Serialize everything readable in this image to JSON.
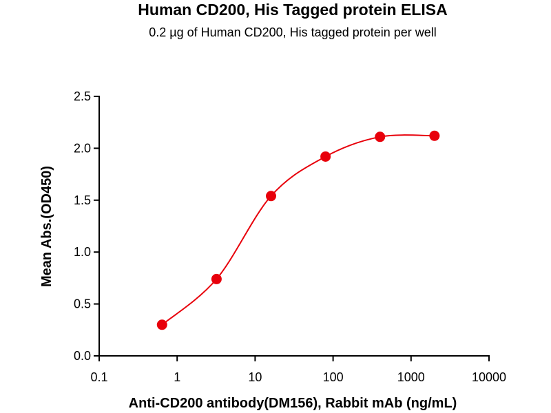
{
  "chart_data": {
    "type": "scatter",
    "title": "Human CD200, His Tagged protein  ELISA",
    "subtitle": "0.2 µg of Human CD200, His tagged protein per well",
    "xlabel": "Anti-CD200 antibody(DM156), Rabbit mAb (ng/mL)",
    "ylabel": "Mean Abs.(OD450)",
    "xscale": "log",
    "xlim": [
      0.1,
      10000
    ],
    "ylim": [
      0,
      2.5
    ],
    "xticks": [
      "0.1",
      "1",
      "10",
      "100",
      "1000",
      "10000"
    ],
    "yticks": [
      "0.0",
      "0.5",
      "1.0",
      "1.5",
      "2.0",
      "2.5"
    ],
    "grid": false,
    "fit_curve": "sigmoidal",
    "color": "#e8000b",
    "x": [
      0.64,
      3.2,
      16,
      80,
      400,
      2000
    ],
    "y": [
      0.3,
      0.74,
      1.54,
      1.92,
      2.11,
      2.12
    ]
  }
}
